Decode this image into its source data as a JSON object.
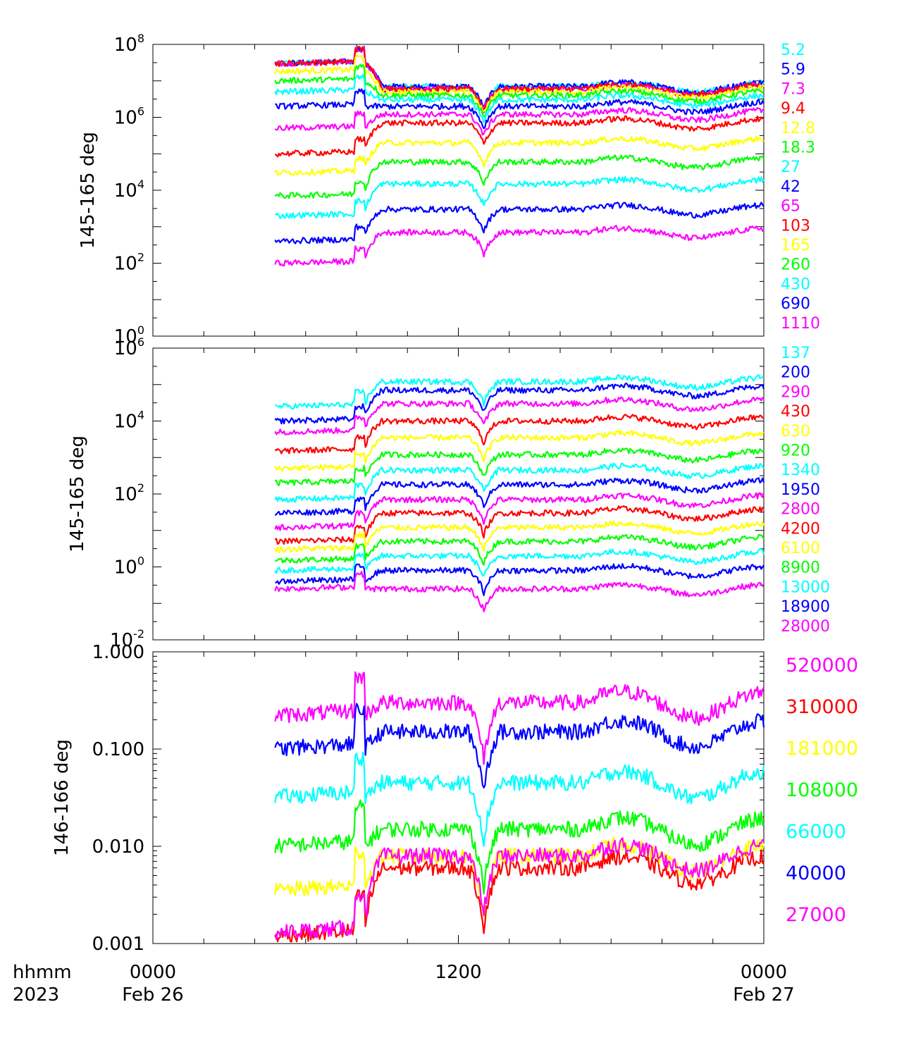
{
  "time_axis": {
    "label_top": "hhmm",
    "label_bottom": "2023",
    "ticks": [
      {
        "hhmm": "0000",
        "date": "Feb 26",
        "hour": 0
      },
      {
        "hhmm": "1200",
        "date": "",
        "hour": 12
      },
      {
        "hhmm": "0000",
        "date": "Feb 27",
        "hour": 24
      }
    ]
  },
  "chart_data": [
    {
      "type": "line",
      "ylabel": "145-165 deg",
      "yscale": "log",
      "ylim": [
        1,
        100000000
      ],
      "ytick_mantissa": "10",
      "ytick_exponents": [
        "8",
        "6",
        "4",
        "2",
        "0"
      ],
      "xlim_hours": [
        0,
        24
      ],
      "data_start_hour": 4.8,
      "series": [
        {
          "name": "5.2",
          "color": "#00ffff",
          "level": 30000000,
          "post": 7000000
        },
        {
          "name": "5.9",
          "color": "#0000ff",
          "level": 30000000,
          "post": 7000000
        },
        {
          "name": "7.3",
          "color": "#ff00ff",
          "level": 30000000,
          "post": 6000000
        },
        {
          "name": "9.4",
          "color": "#ff0000",
          "level": 30000000,
          "post": 6000000
        },
        {
          "name": "12.8",
          "color": "#ffff00",
          "level": 18000000,
          "post": 5000000
        },
        {
          "name": "18.3",
          "color": "#00ff00",
          "level": 10000000,
          "post": 4000000
        },
        {
          "name": "27",
          "color": "#00ffff",
          "level": 5000000,
          "post": 3000000
        },
        {
          "name": "42",
          "color": "#0000ff",
          "level": 2000000,
          "post": 2000000
        },
        {
          "name": "65",
          "color": "#ff00ff",
          "level": 500000,
          "post": 1200000
        },
        {
          "name": "103",
          "color": "#ff0000",
          "level": 100000,
          "post": 700000
        },
        {
          "name": "165",
          "color": "#ffff00",
          "level": 30000,
          "post": 200000
        },
        {
          "name": "260",
          "color": "#00ff00",
          "level": 7000,
          "post": 60000
        },
        {
          "name": "430",
          "color": "#00ffff",
          "level": 2000,
          "post": 15000
        },
        {
          "name": "690",
          "color": "#0000ff",
          "level": 400,
          "post": 3000
        },
        {
          "name": "1110",
          "color": "#ff00ff",
          "level": 100,
          "post": 700
        }
      ]
    },
    {
      "type": "line",
      "ylabel": "145-165 deg",
      "yscale": "log",
      "ylim": [
        0.01,
        1000000
      ],
      "ytick_mantissa": "10",
      "ytick_exponents": [
        "6",
        "4",
        "2",
        "0",
        "-2"
      ],
      "xlim_hours": [
        0,
        24
      ],
      "data_start_hour": 4.8,
      "series": [
        {
          "name": "137",
          "color": "#00ffff",
          "level": 25000,
          "post": 120000
        },
        {
          "name": "200",
          "color": "#0000ff",
          "level": 10000,
          "post": 70000
        },
        {
          "name": "290",
          "color": "#ff00ff",
          "level": 5000,
          "post": 30000
        },
        {
          "name": "430",
          "color": "#ff0000",
          "level": 1500,
          "post": 10000
        },
        {
          "name": "630",
          "color": "#ffff00",
          "level": 500,
          "post": 3500
        },
        {
          "name": "920",
          "color": "#00ff00",
          "level": 200,
          "post": 1200
        },
        {
          "name": "1340",
          "color": "#00ffff",
          "level": 70,
          "post": 450
        },
        {
          "name": "1950",
          "color": "#0000ff",
          "level": 30,
          "post": 180
        },
        {
          "name": "2800",
          "color": "#ff00ff",
          "level": 12,
          "post": 70
        },
        {
          "name": "4200",
          "color": "#ff0000",
          "level": 5,
          "post": 30
        },
        {
          "name": "6100",
          "color": "#ffff00",
          "level": 3,
          "post": 12
        },
        {
          "name": "8900",
          "color": "#00ff00",
          "level": 1.5,
          "post": 5
        },
        {
          "name": "13000",
          "color": "#00ffff",
          "level": 0.8,
          "post": 2
        },
        {
          "name": "18900",
          "color": "#0000ff",
          "level": 0.4,
          "post": 0.8
        },
        {
          "name": "28000",
          "color": "#ff00ff",
          "level": 0.25,
          "post": 0.25
        }
      ]
    },
    {
      "type": "line",
      "ylabel": "146-166 deg",
      "yscale": "log",
      "ylim": [
        0.001,
        1.0
      ],
      "yticks": [
        "1.000",
        "0.100",
        "0.010",
        "0.001"
      ],
      "xlim_hours": [
        0,
        24
      ],
      "data_start_hour": 4.8,
      "series": [
        {
          "name": "520000",
          "color": "#ff00ff",
          "level": 0.22,
          "post": 0.3
        },
        {
          "name": "310000",
          "color": "#ff0000",
          "level": 0.0012,
          "post": 0.006
        },
        {
          "name": "181000",
          "color": "#ffff00",
          "level": 0.0035,
          "post": 0.008
        },
        {
          "name": "108000",
          "color": "#00ff00",
          "level": 0.01,
          "post": 0.015
        },
        {
          "name": "66000",
          "color": "#00ffff",
          "level": 0.032,
          "post": 0.045
        },
        {
          "name": "40000",
          "color": "#0000ff",
          "level": 0.1,
          "post": 0.15
        },
        {
          "name": "27000",
          "color": "#ff00ff",
          "level": 0.0013,
          "post": 0.008
        }
      ]
    }
  ]
}
